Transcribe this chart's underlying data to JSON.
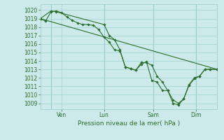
{
  "xlabel": "Pression niveau de la mer( hPa )",
  "ylim": [
    1008.3,
    1020.7
  ],
  "xlim": [
    0,
    100
  ],
  "yticks": [
    1009,
    1010,
    1011,
    1012,
    1013,
    1014,
    1015,
    1016,
    1017,
    1018,
    1019,
    1020
  ],
  "bg_color": "#cceaea",
  "grid_color": "#99cccc",
  "line_color": "#2d6e2d",
  "marker_color": "#2d6e2d",
  "xtick_pos": [
    12,
    36,
    64,
    88
  ],
  "xtick_labels": [
    "Ven",
    "Lun",
    "Sam",
    "Dim"
  ],
  "vline_x": [
    6,
    36,
    64,
    88
  ],
  "line1_x": [
    0,
    3,
    6,
    9,
    12,
    15,
    18,
    21,
    24,
    27,
    30,
    33,
    36,
    39,
    42,
    45,
    48,
    51,
    54,
    57,
    60,
    63,
    66,
    69,
    72,
    75,
    78,
    81,
    84,
    87,
    90,
    93,
    96,
    100
  ],
  "line1_y": [
    1019.0,
    1018.7,
    1019.8,
    1019.9,
    1019.7,
    1019.2,
    1018.8,
    1018.5,
    1018.3,
    1018.3,
    1018.2,
    1017.7,
    1016.8,
    1016.2,
    1015.3,
    1015.2,
    1013.3,
    1013.1,
    1012.9,
    1013.8,
    1013.8,
    1013.5,
    1012.2,
    1011.5,
    1010.5,
    1009.0,
    1008.8,
    1009.5,
    1011.2,
    1012.0,
    1012.2,
    1013.0,
    1013.0,
    1013.0
  ],
  "line2_x": [
    0,
    6,
    9,
    36,
    39,
    42,
    45,
    48,
    51,
    54,
    57,
    60,
    63,
    66,
    69,
    72,
    75,
    78,
    81,
    84,
    87,
    90,
    93,
    96,
    100
  ],
  "line2_y": [
    1019.0,
    1019.9,
    1019.8,
    1018.3,
    1017.0,
    1016.5,
    1015.3,
    1013.3,
    1013.1,
    1012.9,
    1013.6,
    1013.9,
    1011.7,
    1011.5,
    1010.5,
    1010.5,
    1009.4,
    1009.0,
    1009.5,
    1011.1,
    1011.9,
    1012.2,
    1013.0,
    1013.0,
    1013.0
  ],
  "line3_x": [
    0,
    100
  ],
  "line3_y": [
    1019.0,
    1013.0
  ],
  "font_color": "#2d6e2d",
  "fontsize_ytick": 5.5,
  "fontsize_xtick": 5.5,
  "fontsize_xlabel": 6.5
}
